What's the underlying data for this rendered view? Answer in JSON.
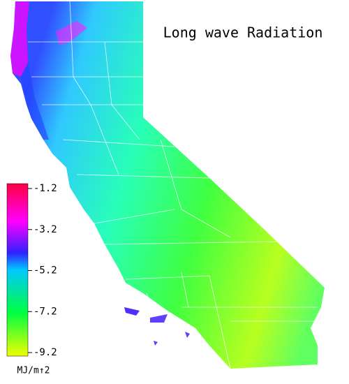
{
  "title": "Long wave Radiation",
  "legend": {
    "ticks": [
      "-1.2",
      "-3.2",
      "-5.2",
      "-7.2",
      "-9.2"
    ],
    "unit": "MJ/m↑2"
  }
}
